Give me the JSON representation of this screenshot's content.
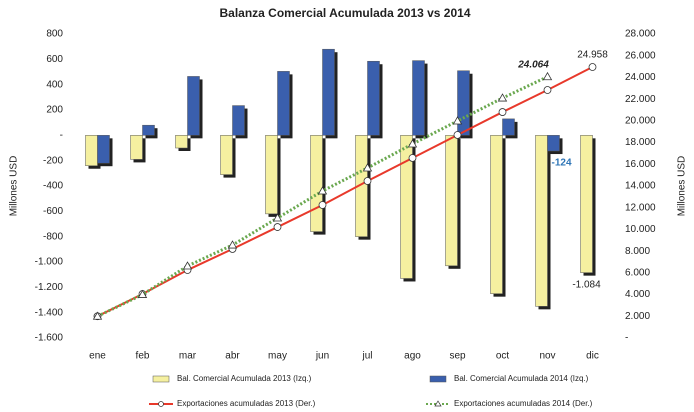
{
  "chart_data": {
    "type": "bar",
    "title": "Balanza Comercial Acumulada 2013 vs 2014",
    "ylabel": "Millones USD",
    "y2label": "Millones USD",
    "categories": [
      "ene",
      "feb",
      "mar",
      "abr",
      "may",
      "jun",
      "jul",
      "ago",
      "sep",
      "oct",
      "nov",
      "dic"
    ],
    "ylim": [
      -1600,
      800
    ],
    "yticks": [
      800,
      600,
      400,
      200,
      {
        "value": 0,
        "label": "-"
      },
      -200,
      -400,
      -600,
      -800,
      {
        "value": -1000,
        "label": "-1.000"
      },
      {
        "value": -1200,
        "label": "-1.200"
      },
      {
        "value": -1400,
        "label": "-1.400"
      },
      {
        "value": -1600,
        "label": "-1.600"
      }
    ],
    "y2lim": [
      0,
      28000
    ],
    "y2ticks": [
      {
        "value": 28000,
        "label": "28.000"
      },
      {
        "value": 26000,
        "label": "26.000"
      },
      {
        "value": 24000,
        "label": "24.000"
      },
      {
        "value": 22000,
        "label": "22.000"
      },
      {
        "value": 20000,
        "label": "20.000"
      },
      {
        "value": 18000,
        "label": "18.000"
      },
      {
        "value": 16000,
        "label": "16.000"
      },
      {
        "value": 14000,
        "label": "14.000"
      },
      {
        "value": 12000,
        "label": "12.000"
      },
      {
        "value": 10000,
        "label": "10.000"
      },
      {
        "value": 8000,
        "label": "8.000"
      },
      {
        "value": 6000,
        "label": "6.000"
      },
      {
        "value": 4000,
        "label": "4.000"
      },
      {
        "value": 2000,
        "label": "2.000"
      },
      {
        "value": 0,
        "label": "-"
      }
    ],
    "series": [
      {
        "name": "Bal. Comercial Acumulada 2013 (Izq.)",
        "type": "bar",
        "color": "#f5f0a0",
        "values": [
          -240,
          -190,
          -100,
          -310,
          -620,
          -760,
          -800,
          -1130,
          -1030,
          -1250,
          -1350,
          -1084
        ],
        "value_labels": [
          null,
          null,
          null,
          null,
          null,
          null,
          null,
          null,
          null,
          null,
          null,
          "-1.084"
        ]
      },
      {
        "name": "Bal. Comercial Acumulada 2014 (Izq.)",
        "type": "bar",
        "color": "#3a5fad",
        "values": [
          -220,
          80,
          465,
          235,
          505,
          680,
          585,
          590,
          510,
          130,
          -124,
          null
        ],
        "value_labels": [
          null,
          null,
          null,
          null,
          null,
          null,
          null,
          null,
          null,
          null,
          -124,
          null
        ]
      },
      {
        "name": "Exportaciones acumuladas 2013 (Der.)",
        "type": "line",
        "axis": "y2",
        "color": "#e8392b",
        "values": [
          2000,
          4050,
          6260,
          8200,
          10220,
          12250,
          14460,
          16580,
          18700,
          20810,
          22840,
          24958
        ],
        "value_labels": [
          null,
          null,
          null,
          null,
          null,
          null,
          null,
          null,
          null,
          null,
          null,
          "24.958"
        ]
      },
      {
        "name": "Exportaciones acumuladas 2014 (Der.)",
        "type": "line",
        "axis": "y2",
        "color": "#6aa84f",
        "dotted": true,
        "values": [
          2000,
          4000,
          6630,
          8560,
          11050,
          13540,
          15660,
          17870,
          19990,
          22100,
          24064,
          null
        ],
        "value_labels": [
          null,
          null,
          null,
          null,
          null,
          null,
          null,
          null,
          null,
          null,
          "24.064",
          null
        ]
      }
    ]
  }
}
